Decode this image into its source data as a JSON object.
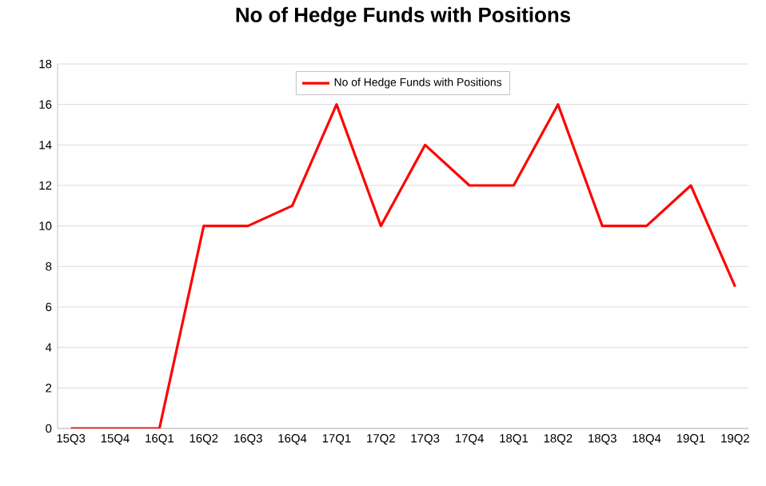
{
  "chart_data": {
    "type": "line",
    "title": "No of Hedge Funds with Positions",
    "categories": [
      "15Q3",
      "15Q4",
      "16Q1",
      "16Q2",
      "16Q3",
      "16Q4",
      "17Q1",
      "17Q2",
      "17Q3",
      "17Q4",
      "18Q1",
      "18Q2",
      "18Q3",
      "18Q4",
      "19Q1",
      "19Q2"
    ],
    "series": [
      {
        "name": "No of Hedge Funds with Positions",
        "color": "#ff0000",
        "values": [
          0,
          0,
          0,
          10,
          10,
          11,
          16,
          10,
          14,
          12,
          12,
          16,
          10,
          10,
          12,
          7
        ]
      }
    ],
    "ylim": [
      0,
      18
    ],
    "yticks": [
      0,
      2,
      4,
      6,
      8,
      10,
      12,
      14,
      16,
      18
    ],
    "grid": "y",
    "legend": "top",
    "marker": "none",
    "line_style": "solid"
  }
}
